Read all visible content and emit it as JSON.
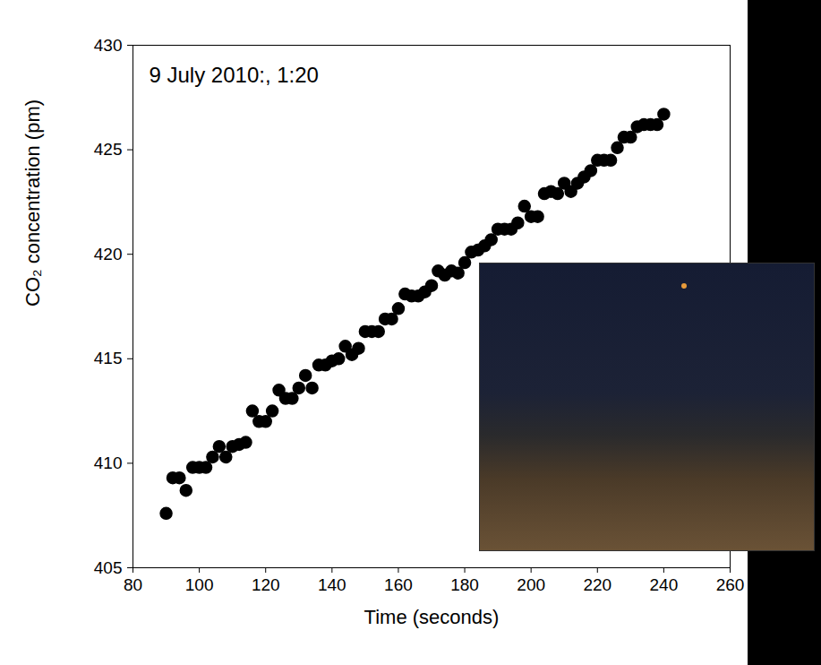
{
  "chart_data": {
    "type": "scatter",
    "title": "9 July 2010:, 1:20",
    "x_label": "Time (seconds)",
    "y_label": "CO₂ concentration (pm)",
    "x": [
      90,
      92,
      94,
      96,
      98,
      100,
      102,
      104,
      106,
      108,
      110,
      112,
      114,
      116,
      118,
      120,
      122,
      124,
      126,
      128,
      130,
      132,
      134,
      136,
      138,
      140,
      142,
      144,
      146,
      148,
      150,
      152,
      154,
      156,
      158,
      160,
      162,
      164,
      166,
      168,
      170,
      172,
      174,
      176,
      178,
      180,
      182,
      184,
      186,
      188,
      190,
      192,
      194,
      196,
      198,
      200,
      202,
      204,
      206,
      208,
      210,
      212,
      214,
      216,
      218,
      220,
      222,
      224,
      226,
      228,
      230,
      232,
      234,
      236,
      238,
      240
    ],
    "values": [
      407.6,
      409.3,
      409.3,
      408.7,
      409.8,
      409.8,
      409.8,
      410.3,
      410.8,
      410.3,
      410.8,
      410.9,
      411.0,
      412.5,
      412.0,
      412.0,
      412.5,
      413.5,
      413.1,
      413.1,
      413.6,
      414.2,
      413.6,
      414.7,
      414.7,
      414.9,
      415.0,
      415.6,
      415.2,
      415.5,
      416.3,
      416.3,
      416.3,
      416.9,
      416.9,
      417.4,
      418.1,
      418.0,
      418.0,
      418.2,
      418.5,
      419.2,
      419.0,
      419.2,
      419.1,
      419.6,
      420.1,
      420.2,
      420.4,
      420.7,
      421.2,
      421.2,
      421.2,
      421.5,
      422.3,
      421.8,
      421.8,
      422.9,
      423.0,
      422.9,
      423.4,
      423.0,
      423.4,
      423.7,
      424.0,
      424.5,
      424.5,
      424.5,
      425.1,
      425.6,
      425.6,
      426.1,
      426.2,
      426.2,
      426.2,
      426.7
    ],
    "color": "#000000",
    "marker": "circle",
    "grid": false,
    "xlim": [
      80,
      260
    ],
    "xticks": [
      80,
      100,
      120,
      140,
      160,
      180,
      200,
      220,
      240,
      260
    ],
    "ylim": [
      405,
      430
    ],
    "yticks": [
      405,
      410,
      415,
      420,
      425,
      430
    ]
  }
}
